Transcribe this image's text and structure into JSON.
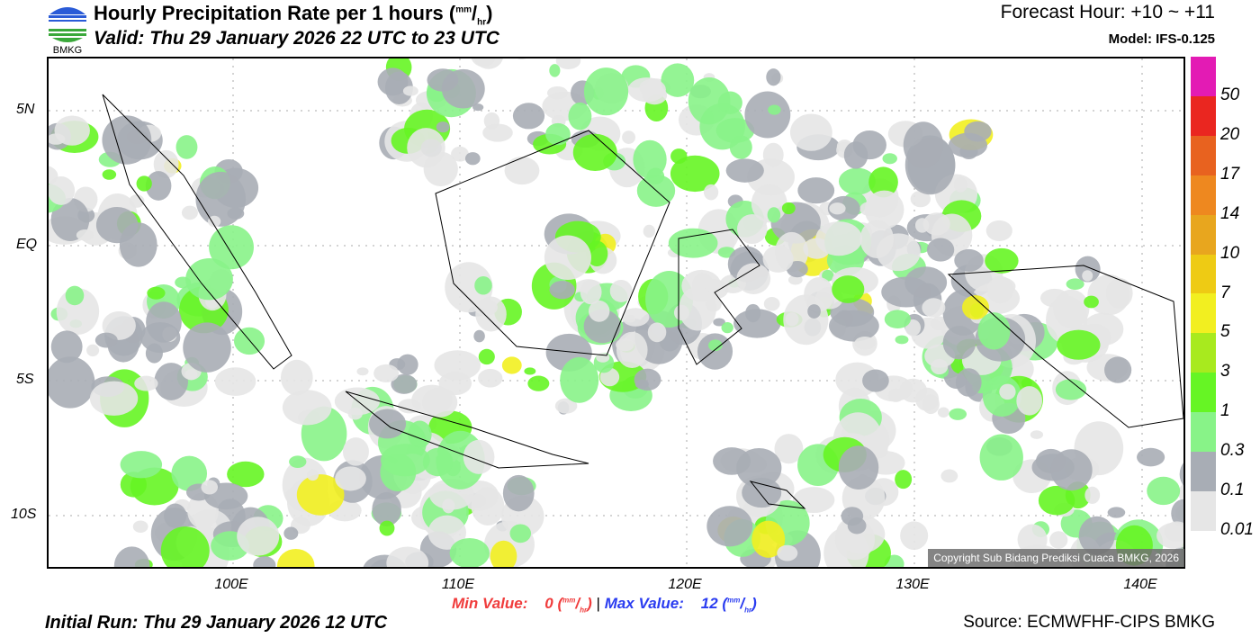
{
  "header": {
    "logo_text": "BMKG",
    "title": "Hourly Precipitation Rate per 1 hours (",
    "unit_num": "mm",
    "unit_den": "hr",
    "title_close": ")",
    "valid": "Valid: Thu 29 January 2026 22 UTC to 23 UTC",
    "forecast_hour": "Forecast Hour: +10 ~ +11",
    "model": "Model: IFS-0.125"
  },
  "axes": {
    "lat_labels": [
      "5N",
      "EQ",
      "5S",
      "10S"
    ],
    "lon_labels": [
      "100E",
      "110E",
      "120E",
      "130E",
      "140E"
    ]
  },
  "colorbar": {
    "colors": [
      "#e31bb4",
      "#ea2620",
      "#e8621f",
      "#ee881f",
      "#e8a61e",
      "#eecb14",
      "#f2ef20",
      "#a8ea1e",
      "#66f524",
      "#88f388",
      "#a8adb5",
      "#e6e6e6"
    ],
    "labels": [
      "50",
      "20",
      "17",
      "14",
      "10",
      "7",
      "5",
      "3",
      "1",
      "0.3",
      "0.1",
      "0.01"
    ]
  },
  "copyright": "Copyright Sub Bidang Prediksi Cuaca BMKG, 2026",
  "footer": {
    "min_label": "Min Value:",
    "min_value": "0",
    "max_label": "Max Value:",
    "max_value": "12",
    "unit_num": "mm",
    "unit_den": "hr",
    "separator": "|",
    "initial_run": "Initial Run: Thu 29 January 2026 12 UTC",
    "source": "Source: ECMWFHF-CIPS BMKG"
  }
}
